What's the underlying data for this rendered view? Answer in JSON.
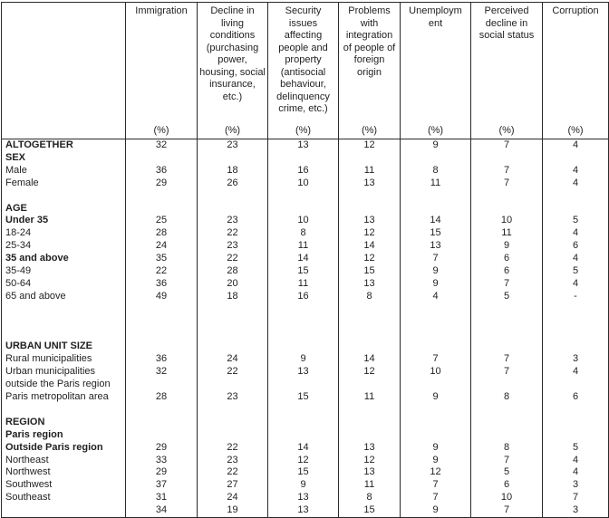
{
  "table": {
    "corner_label": "",
    "unit_label": "(%)",
    "columns": [
      {
        "label": "Immigration",
        "unit": "(%)"
      },
      {
        "label": "Decline in living conditions (purchasing power, housing, social insurance, etc.)",
        "unit": "(%)"
      },
      {
        "label": "Security issues affecting people and property (antisocial behaviour, delinquency crime, etc.)",
        "unit": "(%)"
      },
      {
        "label": "Problems with integration of people of foreign origin",
        "unit": "(%)"
      },
      {
        "label": "Unemployment",
        "unit": "(%)"
      },
      {
        "label": "Perceived decline in social status",
        "unit": "(%)"
      },
      {
        "label": "Corruption",
        "unit": "(%)"
      }
    ],
    "rows": [
      {
        "label": "ALTOGETHER",
        "bold": true,
        "values": [
          "32",
          "23",
          "13",
          "12",
          "9",
          "7",
          "4"
        ]
      },
      {
        "label": "SEX",
        "bold": true,
        "values": [
          "",
          "",
          "",
          "",
          "",
          "",
          ""
        ]
      },
      {
        "label": "Male",
        "bold": false,
        "values": [
          "36",
          "18",
          "16",
          "11",
          "8",
          "7",
          "4"
        ]
      },
      {
        "label": "Female",
        "bold": false,
        "values": [
          "29",
          "26",
          "10",
          "13",
          "11",
          "7",
          "4"
        ]
      },
      {
        "label": "",
        "bold": false,
        "values": [
          "",
          "",
          "",
          "",
          "",
          "",
          ""
        ]
      },
      {
        "label": "AGE",
        "bold": true,
        "values": [
          "",
          "",
          "",
          "",
          "",
          "",
          ""
        ]
      },
      {
        "label": "Under 35",
        "bold": true,
        "values": [
          "25",
          "23",
          "10",
          "13",
          "14",
          "10",
          "5"
        ]
      },
      {
        "label": "18-24",
        "bold": false,
        "values": [
          "28",
          "22",
          "8",
          "12",
          "15",
          "11",
          "4"
        ]
      },
      {
        "label": "25-34",
        "bold": false,
        "values": [
          "24",
          "23",
          "11",
          "14",
          "13",
          "9",
          "6"
        ]
      },
      {
        "label": "35 and above",
        "bold": true,
        "values": [
          "35",
          "22",
          "14",
          "12",
          "7",
          "6",
          "4"
        ]
      },
      {
        "label": "35-49",
        "bold": false,
        "values": [
          "22",
          "28",
          "15",
          "15",
          "9",
          "6",
          "5"
        ]
      },
      {
        "label": "50-64",
        "bold": false,
        "values": [
          "36",
          "20",
          "11",
          "13",
          "9",
          "7",
          "4"
        ]
      },
      {
        "label": "65 and above",
        "bold": false,
        "values": [
          "49",
          "18",
          "16",
          "8",
          "4",
          "5",
          "-"
        ]
      },
      {
        "label": "",
        "bold": false,
        "values": [
          "",
          "",
          "",
          "",
          "",
          "",
          ""
        ]
      },
      {
        "label": "",
        "bold": false,
        "values": [
          "",
          "",
          "",
          "",
          "",
          "",
          ""
        ]
      },
      {
        "label": "",
        "bold": false,
        "values": [
          "",
          "",
          "",
          "",
          "",
          "",
          ""
        ]
      },
      {
        "label": "URBAN UNIT SIZE",
        "bold": true,
        "values": [
          "",
          "",
          "",
          "",
          "",
          "",
          ""
        ]
      },
      {
        "label": "Rural municipalities",
        "bold": false,
        "values": [
          "36",
          "24",
          "9",
          "14",
          "7",
          "7",
          "3"
        ]
      },
      {
        "label": "Urban municipalities outside the Paris region",
        "label_lines": [
          "Urban municipalities",
          "outside the Paris region"
        ],
        "bold": false,
        "values": [
          "32",
          "22",
          "13",
          "12",
          "10",
          "7",
          "4"
        ]
      },
      {
        "label": "Paris metropolitan area",
        "bold": false,
        "values": [
          "28",
          "23",
          "15",
          "11",
          "9",
          "8",
          "6"
        ]
      },
      {
        "label": "",
        "bold": false,
        "values": [
          "",
          "",
          "",
          "",
          "",
          "",
          ""
        ]
      },
      {
        "label": "REGION",
        "bold": true,
        "values": [
          "",
          "",
          "",
          "",
          "",
          "",
          ""
        ]
      },
      {
        "label": "Paris region",
        "bold": true,
        "values": [
          "",
          "",
          "",
          "",
          "",
          "",
          ""
        ]
      },
      {
        "label": "Outside Paris region",
        "bold": true,
        "values": [
          "29",
          "22",
          "14",
          "13",
          "9",
          "8",
          "5"
        ]
      },
      {
        "label": "Northeast",
        "bold": false,
        "values": [
          "33",
          "23",
          "12",
          "12",
          "9",
          "7",
          "4"
        ]
      },
      {
        "label": "Northwest",
        "bold": false,
        "values": [
          "29",
          "22",
          "15",
          "13",
          "12",
          "5",
          "4"
        ]
      },
      {
        "label": "Southwest",
        "bold": false,
        "values": [
          "37",
          "27",
          "9",
          "11",
          "7",
          "6",
          "3"
        ]
      },
      {
        "label": "Southeast",
        "bold": false,
        "values": [
          "31",
          "24",
          "13",
          "8",
          "7",
          "10",
          "7"
        ]
      },
      {
        "label": "",
        "bold": false,
        "values": [
          "34",
          "19",
          "13",
          "15",
          "9",
          "7",
          "3"
        ]
      }
    ]
  }
}
